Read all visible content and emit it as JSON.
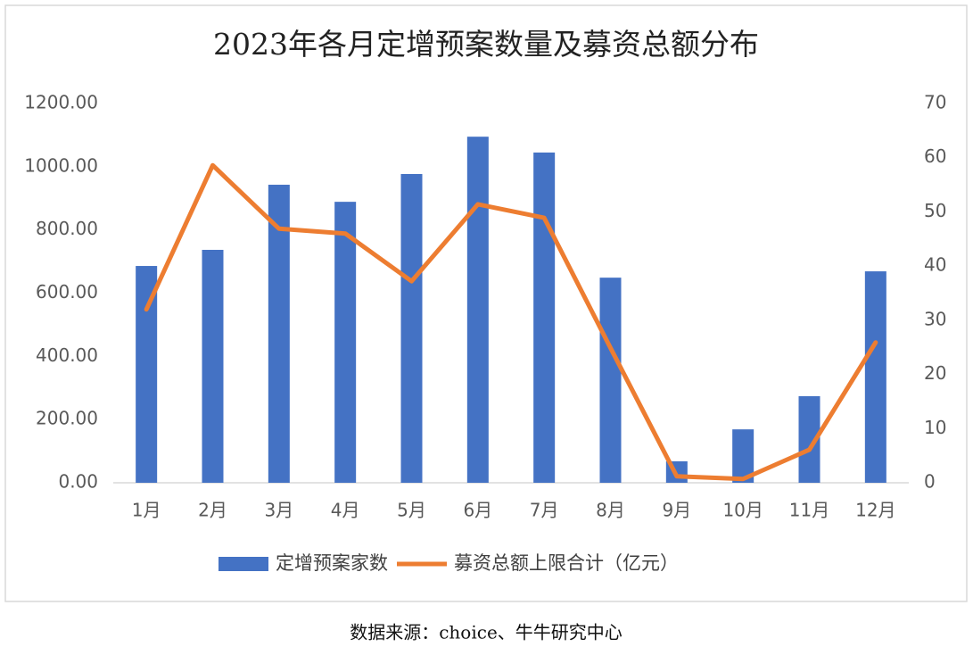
{
  "chart_data": {
    "type": "bar-line",
    "title": "2023年各月定增预案数量及募资总额分布",
    "source": "数据来源：choice、牛牛研究中心",
    "categories": [
      "1月",
      "2月",
      "3月",
      "4月",
      "5月",
      "6月",
      "7月",
      "8月",
      "9月",
      "10月",
      "11月",
      "12月"
    ],
    "series": [
      {
        "name": "定增预案家数",
        "type": "bar",
        "color": "#4472c4",
        "values": [
          686,
          737,
          943,
          889,
          977,
          1095,
          1045,
          649,
          68,
          169,
          274,
          669
        ]
      },
      {
        "name": "募资总额上限合计（亿元）",
        "type": "line",
        "axis": "y2",
        "color": "#ed7d31",
        "values": [
          32.0,
          58.6,
          46.9,
          46.0,
          37.2,
          51.4,
          48.9,
          24.9,
          1.2,
          0.7,
          6.1,
          25.9
        ]
      }
    ],
    "ylim": [
      0,
      1200
    ],
    "yticks": [
      {
        "value": 0,
        "label": "0.00"
      },
      {
        "value": 200,
        "label": "200.00"
      },
      {
        "value": 400,
        "label": "400.00"
      },
      {
        "value": 600,
        "label": "600.00"
      },
      {
        "value": 800,
        "label": "800.00"
      },
      {
        "value": 1000,
        "label": "1000.00"
      },
      {
        "value": 1200,
        "label": "1200.00"
      }
    ],
    "y2lim": [
      0,
      70
    ],
    "y2ticks": [
      0,
      10,
      20,
      30,
      40,
      50,
      60,
      70
    ],
    "legend": "bottom"
  }
}
